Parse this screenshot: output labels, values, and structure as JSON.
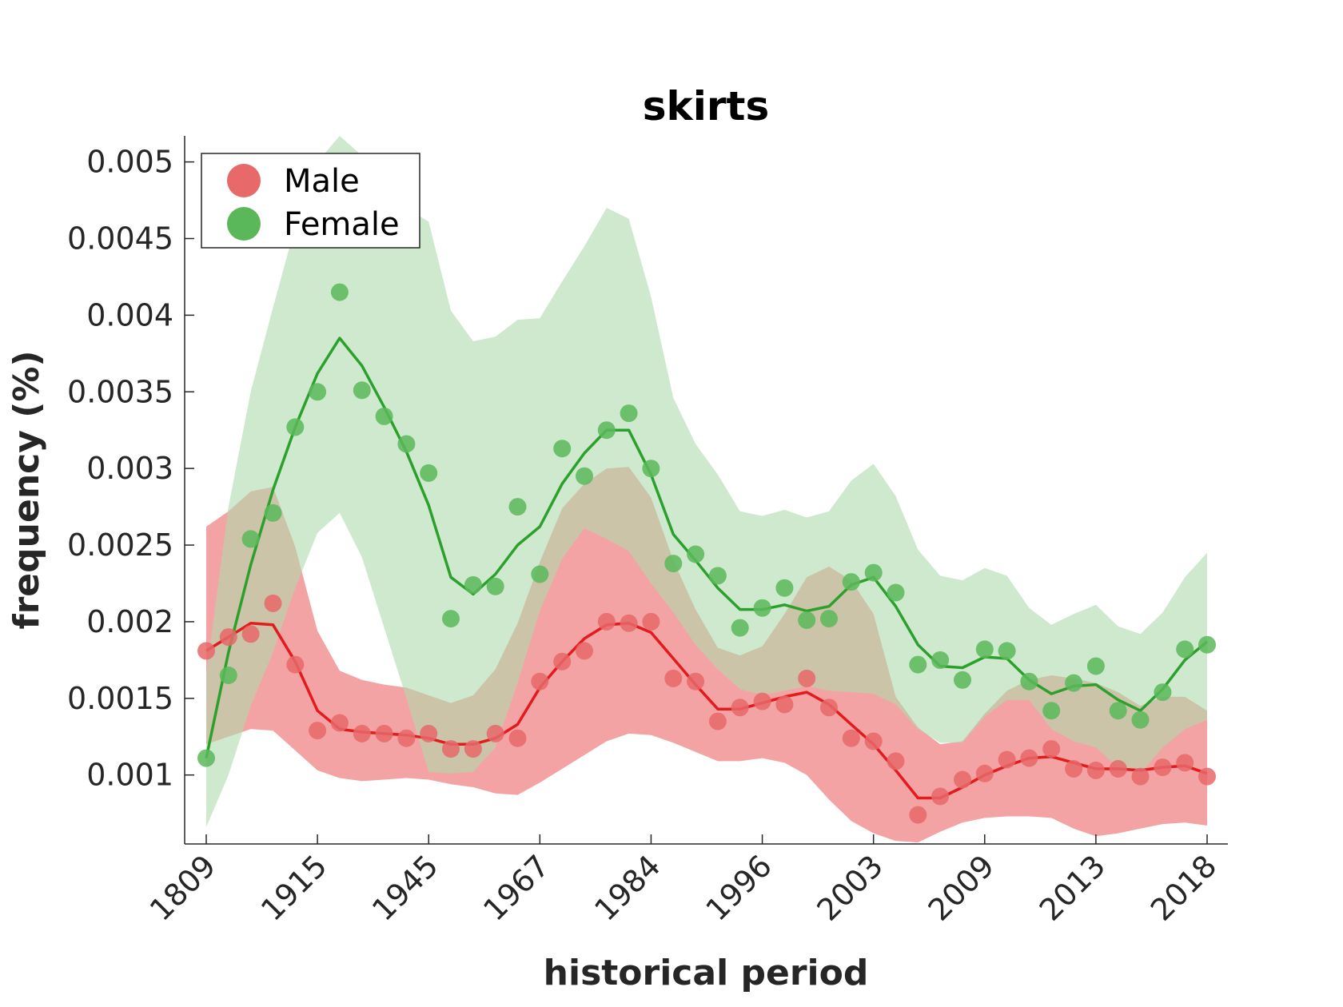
{
  "chart_data": {
    "type": "scatter",
    "title": "skirts",
    "xlabel": "historical period",
    "ylabel": "frequency (%)",
    "ylim": [
      0.00055,
      0.00517
    ],
    "y_ticks": [
      "0.001",
      "0.0015",
      "0.002",
      "0.0025",
      "0.003",
      "0.0035",
      "0.004",
      "0.0045",
      "0.005"
    ],
    "x_tick_labels": [
      "1809",
      "1915",
      "1945",
      "1967",
      "1984",
      "1996",
      "2003",
      "2009",
      "2013",
      "2018"
    ],
    "x_tick_positions": [
      1,
      6,
      11,
      16,
      21,
      26,
      31,
      36,
      41,
      46
    ],
    "xlim": [
      0,
      48
    ],
    "legend": {
      "position": "top-left",
      "entries": [
        "Male",
        "Female"
      ]
    },
    "grid": false,
    "series": [
      {
        "name": "Male",
        "color": "#e41a1c",
        "marker_color": "#e8696a",
        "band_color": "#f4a3a4",
        "x": [
          1,
          2,
          3,
          4,
          5,
          6,
          7,
          8,
          9,
          10,
          11,
          12,
          13,
          14,
          15,
          16,
          17,
          18,
          19,
          20,
          21,
          22,
          23,
          24,
          25,
          26,
          27,
          28,
          29,
          30,
          31,
          32,
          33,
          34,
          35,
          36,
          37,
          38,
          39,
          40,
          41,
          42,
          43,
          44,
          45,
          46
        ],
        "points": [
          0.00181,
          0.0019,
          0.00192,
          0.00212,
          0.00172,
          0.00129,
          0.00134,
          0.00127,
          0.00127,
          0.00124,
          0.00127,
          0.00117,
          0.00117,
          0.00127,
          0.00124,
          0.00161,
          0.00174,
          0.00181,
          0.002,
          0.00199,
          0.002,
          0.00163,
          0.00161,
          0.00135,
          0.00144,
          0.00148,
          0.00146,
          0.00163,
          0.00144,
          0.00124,
          0.00122,
          0.00109,
          0.00074,
          0.00086,
          0.00097,
          0.00101,
          0.0011,
          0.00111,
          0.00117,
          0.00104,
          0.00103,
          0.00104,
          0.00099,
          0.00105,
          0.00108,
          0.00099
        ],
        "trend": [
          0.00181,
          0.0019,
          0.00199,
          0.00198,
          0.00174,
          0.00142,
          0.0013,
          0.00128,
          0.00127,
          0.00126,
          0.00124,
          0.0012,
          0.0012,
          0.00124,
          0.00133,
          0.00157,
          0.00174,
          0.00189,
          0.00198,
          0.00199,
          0.00193,
          0.00176,
          0.00159,
          0.00143,
          0.00143,
          0.00147,
          0.00151,
          0.00154,
          0.00146,
          0.00133,
          0.0012,
          0.00103,
          0.00085,
          0.00085,
          0.00092,
          0.001,
          0.00106,
          0.00111,
          0.00112,
          0.00108,
          0.00104,
          0.00104,
          0.00103,
          0.00105,
          0.00106,
          0.00101
        ],
        "upper": [
          0.00262,
          0.00272,
          0.00285,
          0.00288,
          0.00249,
          0.00194,
          0.00168,
          0.00162,
          0.00159,
          0.00157,
          0.00152,
          0.00147,
          0.00152,
          0.00169,
          0.00199,
          0.00239,
          0.00274,
          0.0029,
          0.003,
          0.00301,
          0.00281,
          0.0024,
          0.00208,
          0.00183,
          0.00178,
          0.00184,
          0.00205,
          0.00229,
          0.00236,
          0.00227,
          0.00205,
          0.00151,
          0.00131,
          0.0012,
          0.00122,
          0.0014,
          0.00155,
          0.00162,
          0.00165,
          0.00163,
          0.0016,
          0.00154,
          0.00145,
          0.00151,
          0.00151,
          0.00142
        ],
        "lower": [
          0.0012,
          0.00125,
          0.0013,
          0.00129,
          0.00116,
          0.00103,
          0.00098,
          0.00096,
          0.00097,
          0.00098,
          0.00097,
          0.00094,
          0.00092,
          0.00088,
          0.00087,
          0.00095,
          0.00104,
          0.00113,
          0.00122,
          0.00127,
          0.00126,
          0.00121,
          0.00115,
          0.00109,
          0.00109,
          0.00111,
          0.00108,
          0.001,
          0.00084,
          0.0007,
          0.00062,
          0.00057,
          0.00056,
          0.00063,
          0.00069,
          0.00072,
          0.00073,
          0.00073,
          0.00072,
          0.00065,
          0.0006,
          0.00062,
          0.00065,
          0.00068,
          0.00069,
          0.00067
        ]
      },
      {
        "name": "Female",
        "color": "#2ca02c",
        "marker_color": "#5ab85a",
        "band_color": "#afdbae",
        "x": [
          1,
          2,
          3,
          4,
          5,
          6,
          7,
          8,
          9,
          10,
          11,
          12,
          13,
          14,
          15,
          16,
          17,
          18,
          19,
          20,
          21,
          22,
          23,
          24,
          25,
          26,
          27,
          28,
          29,
          30,
          31,
          32,
          33,
          34,
          35,
          36,
          37,
          38,
          39,
          40,
          41,
          42,
          43,
          44,
          45,
          46
        ],
        "points": [
          0.00111,
          0.00165,
          0.00254,
          0.00271,
          0.00327,
          0.0035,
          0.00415,
          0.00351,
          0.00334,
          0.00316,
          0.00297,
          0.00202,
          0.00224,
          0.00223,
          0.00275,
          0.00231,
          0.00313,
          0.00295,
          0.00325,
          0.00336,
          0.003,
          0.00238,
          0.00244,
          0.0023,
          0.00196,
          0.00209,
          0.00222,
          0.00201,
          0.00202,
          0.00226,
          0.00232,
          0.00219,
          0.00172,
          0.00175,
          0.00162,
          0.00182,
          0.00181,
          0.00161,
          0.00142,
          0.0016,
          0.00171,
          0.00142,
          0.00136,
          0.00154,
          0.00182,
          0.00185
        ],
        "trend": [
          0.00111,
          0.0018,
          0.00237,
          0.00286,
          0.00327,
          0.00362,
          0.00385,
          0.00367,
          0.0034,
          0.00311,
          0.00276,
          0.00229,
          0.00218,
          0.00231,
          0.0025,
          0.00262,
          0.0029,
          0.0031,
          0.00325,
          0.00325,
          0.00296,
          0.00257,
          0.0024,
          0.00222,
          0.00208,
          0.00208,
          0.00211,
          0.00207,
          0.0021,
          0.00224,
          0.00229,
          0.0021,
          0.00185,
          0.00171,
          0.0017,
          0.00177,
          0.00176,
          0.00162,
          0.00153,
          0.00158,
          0.00159,
          0.00149,
          0.00142,
          0.00156,
          0.00175,
          0.00187
        ],
        "upper": [
          0.00166,
          0.00275,
          0.0035,
          0.00405,
          0.00458,
          0.005,
          0.00517,
          0.00504,
          0.00484,
          0.0047,
          0.00461,
          0.00403,
          0.00383,
          0.00386,
          0.00397,
          0.00398,
          0.00422,
          0.00445,
          0.0047,
          0.00463,
          0.00412,
          0.00346,
          0.00316,
          0.00296,
          0.00272,
          0.00269,
          0.00273,
          0.00268,
          0.00272,
          0.00292,
          0.00303,
          0.00282,
          0.00247,
          0.0023,
          0.00227,
          0.00235,
          0.0023,
          0.00209,
          0.00198,
          0.00205,
          0.00211,
          0.00197,
          0.00192,
          0.00206,
          0.00229,
          0.00245
        ],
        "lower": [
          0.00066,
          0.001,
          0.00145,
          0.0018,
          0.00222,
          0.00258,
          0.00271,
          0.00242,
          0.00196,
          0.0015,
          0.00102,
          0.00101,
          0.00102,
          0.00118,
          0.0016,
          0.00207,
          0.00241,
          0.00261,
          0.00254,
          0.00246,
          0.00225,
          0.00206,
          0.00185,
          0.00169,
          0.00156,
          0.00152,
          0.00155,
          0.00158,
          0.00155,
          0.00154,
          0.00153,
          0.00146,
          0.0013,
          0.00121,
          0.00121,
          0.00138,
          0.00149,
          0.00149,
          0.0013,
          0.00122,
          0.00118,
          0.00105,
          0.00101,
          0.00118,
          0.0013,
          0.00136
        ]
      }
    ]
  }
}
